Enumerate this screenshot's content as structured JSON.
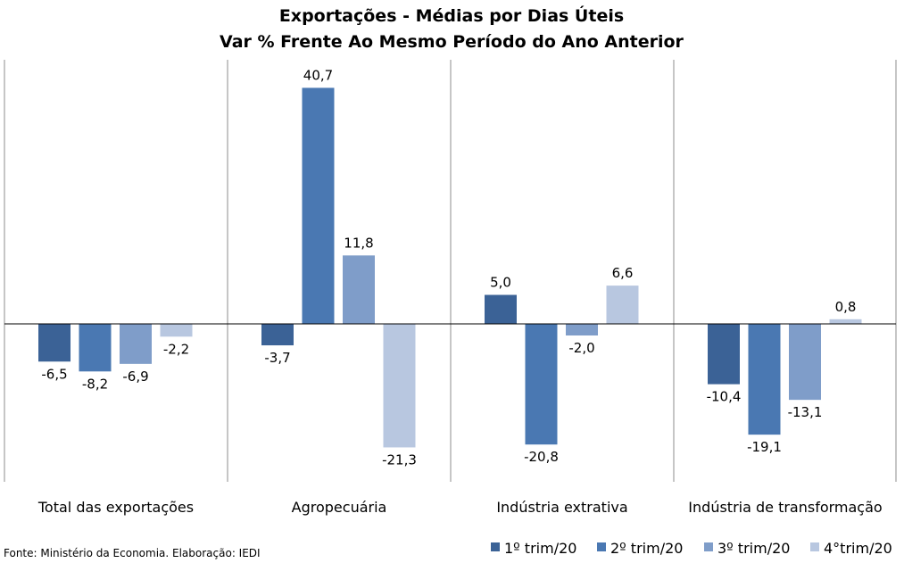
{
  "chart_data": {
    "type": "bar",
    "title": "Exportações - Médias por Dias Úteis",
    "subtitle": "Var % Frente Ao Mesmo Período do Ano Anterior",
    "categories": [
      "Total das exportações",
      "Agropecuária",
      "Indústria extrativa",
      "Indústria de transformação"
    ],
    "series": [
      {
        "name": "1º trim/20",
        "color": "#3b6296",
        "values": [
          -6.5,
          -3.7,
          5.0,
          -10.4
        ],
        "labels": [
          "-6,5",
          "-3,7",
          "5,0",
          "-10,4"
        ]
      },
      {
        "name": "2º trim/20",
        "color": "#4a78b2",
        "values": [
          -8.2,
          40.7,
          -20.8,
          -19.1
        ],
        "labels": [
          "-8,2",
          "40,7",
          "-20,8",
          "-19,1"
        ]
      },
      {
        "name": "3º trim/20",
        "color": "#7f9dc9",
        "values": [
          -6.9,
          11.8,
          -2.0,
          -13.1
        ],
        "labels": [
          "-6,9",
          "11,8",
          "-2,0",
          "-13,1"
        ]
      },
      {
        "name": "4°trim/20",
        "color": "#b8c7e0",
        "values": [
          -2.2,
          -21.3,
          6.6,
          0.8
        ],
        "labels": [
          "-2,2",
          "-21,3",
          "6,6",
          "0,8"
        ]
      }
    ],
    "grid": false,
    "legend": "bottom-right"
  },
  "source": "Fonte: Ministério da Economia. Elaboração: IEDI"
}
